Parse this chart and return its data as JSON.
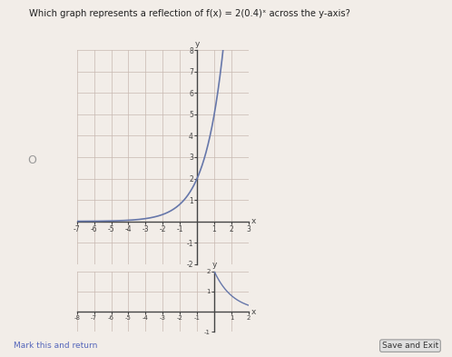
{
  "title": "Which graph represents a reflection of f(x) = 2(0.4)ˣ across the y-axis?",
  "bg_color": "#f2ede8",
  "curve_color": "#6677aa",
  "axis_color": "#444444",
  "grid_color": "#c8b8b0",
  "graph1": {
    "xlim": [
      -7,
      3
    ],
    "ylim": [
      -2,
      8
    ],
    "xticks": [
      -7,
      -6,
      -5,
      -4,
      -3,
      -2,
      -1,
      1,
      2,
      3
    ],
    "yticks": [
      -2,
      -1,
      1,
      2,
      3,
      4,
      5,
      6,
      7,
      8
    ],
    "xlabel": "x",
    "ylabel": "y"
  },
  "graph2": {
    "xlim": [
      -8,
      2
    ],
    "ylim": [
      -1,
      2
    ],
    "xticks": [
      -8,
      -7,
      -6,
      -5,
      -4,
      -3,
      -2,
      -1,
      1,
      2
    ],
    "yticks": [
      -1,
      1,
      2
    ],
    "xlabel": "x",
    "ylabel": "y"
  },
  "radio_color": "#999999",
  "save_button_text": "Save and Exit",
  "mark_text": "Mark this and return"
}
